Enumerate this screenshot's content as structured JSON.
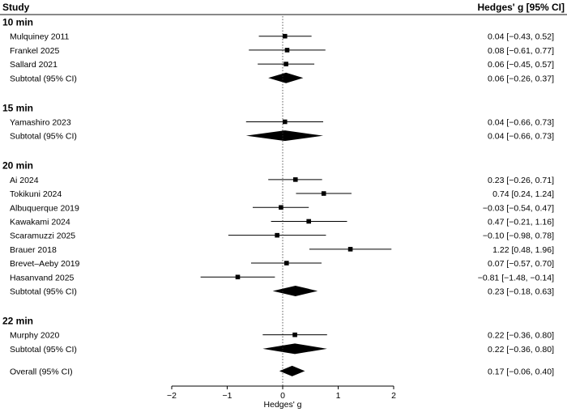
{
  "chart_data": {
    "type": "forest",
    "header": {
      "left": "Study",
      "right": "Hedges' g [95% CI]"
    },
    "xlabel": "Hedges' g",
    "xlim": [
      -2,
      2
    ],
    "xticks": [
      -2,
      -1,
      0,
      1,
      2
    ],
    "xtick_labels": [
      "−2",
      "−1",
      "0",
      "1",
      "2"
    ],
    "null_line": 0,
    "groups": [
      {
        "name": "10 min",
        "studies": [
          {
            "label": "Mulquiney 2011",
            "est": 0.04,
            "lo": -0.43,
            "hi": 0.52,
            "text": "0.04 [−0.43, 0.52]"
          },
          {
            "label": "Frankel 2025",
            "est": 0.08,
            "lo": -0.61,
            "hi": 0.77,
            "text": "0.08 [−0.61, 0.77]"
          },
          {
            "label": "Sallard 2021",
            "est": 0.06,
            "lo": -0.45,
            "hi": 0.57,
            "text": "0.06 [−0.45, 0.57]"
          }
        ],
        "subtotal": {
          "label": "Subtotal (95% CI)",
          "est": 0.06,
          "lo": -0.26,
          "hi": 0.37,
          "text": "0.06 [−0.26, 0.37]"
        }
      },
      {
        "name": "15 min",
        "studies": [
          {
            "label": "Yamashiro 2023",
            "est": 0.04,
            "lo": -0.66,
            "hi": 0.73,
            "text": "0.04 [−0.66, 0.73]"
          }
        ],
        "subtotal": {
          "label": "Subtotal (95% CI)",
          "est": 0.04,
          "lo": -0.66,
          "hi": 0.73,
          "text": "0.04 [−0.66, 0.73]"
        }
      },
      {
        "name": "20 min",
        "studies": [
          {
            "label": "Ai 2024",
            "est": 0.23,
            "lo": -0.26,
            "hi": 0.71,
            "text": "0.23 [−0.26, 0.71]"
          },
          {
            "label": "Tokikuni 2024",
            "est": 0.74,
            "lo": 0.24,
            "hi": 1.24,
            "text": "0.74 [0.24, 1.24]"
          },
          {
            "label": "Albuquerque 2019",
            "est": -0.03,
            "lo": -0.54,
            "hi": 0.47,
            "text": "−0.03 [−0.54, 0.47]"
          },
          {
            "label": "Kawakami 2024",
            "est": 0.47,
            "lo": -0.21,
            "hi": 1.16,
            "text": "0.47 [−0.21, 1.16]"
          },
          {
            "label": "Scaramuzzi 2025",
            "est": -0.1,
            "lo": -0.98,
            "hi": 0.78,
            "text": "−0.10 [−0.98, 0.78]"
          },
          {
            "label": "Brauer 2018",
            "est": 1.22,
            "lo": 0.48,
            "hi": 1.96,
            "text": "1.22 [0.48, 1.96]"
          },
          {
            "label": "Brevet–Aeby 2019",
            "est": 0.07,
            "lo": -0.57,
            "hi": 0.7,
            "text": "0.07 [−0.57, 0.70]"
          },
          {
            "label": "Hasanvand 2025",
            "est": -0.81,
            "lo": -1.48,
            "hi": -0.14,
            "text": "−0.81 [−1.48, −0.14]"
          }
        ],
        "subtotal": {
          "label": "Subtotal (95% CI)",
          "est": 0.23,
          "lo": -0.18,
          "hi": 0.63,
          "text": "0.23 [−0.18, 0.63]"
        }
      },
      {
        "name": "22 min",
        "studies": [
          {
            "label": "Murphy 2020",
            "est": 0.22,
            "lo": -0.36,
            "hi": 0.8,
            "text": "0.22 [−0.36, 0.80]"
          }
        ],
        "subtotal": {
          "label": "Subtotal (95% CI)",
          "est": 0.22,
          "lo": -0.36,
          "hi": 0.8,
          "text": "0.22 [−0.36, 0.80]"
        }
      }
    ],
    "overall": {
      "label": "Overall (95% CI)",
      "est": 0.17,
      "lo": -0.06,
      "hi": 0.4,
      "text": "0.17 [−0.06, 0.40]"
    }
  }
}
